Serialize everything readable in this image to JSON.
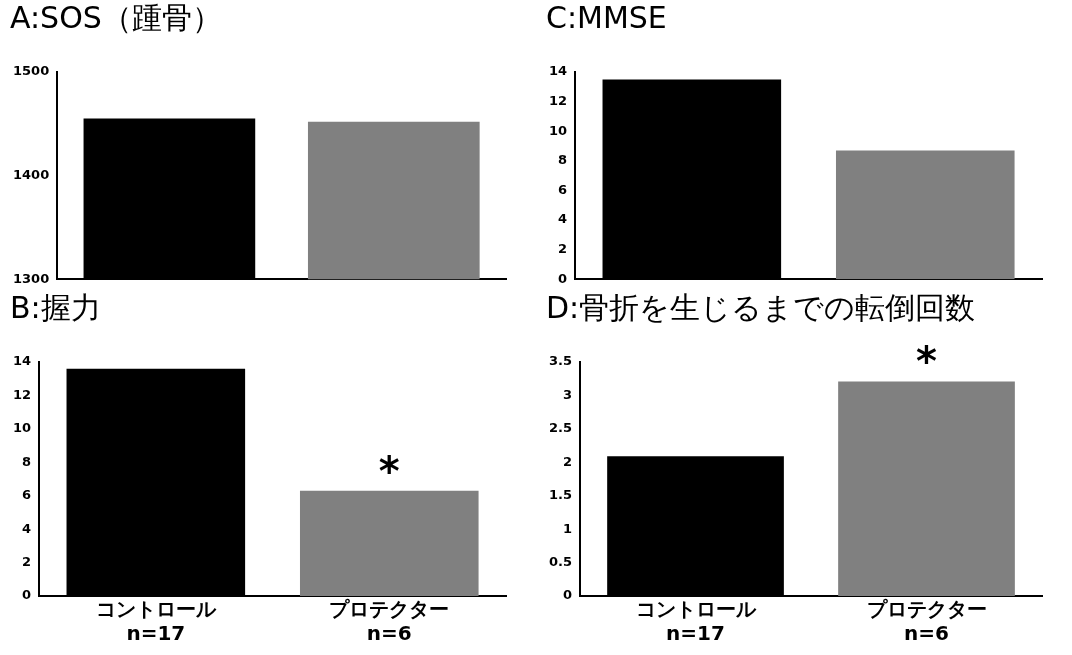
{
  "chart_data": [
    {
      "type": "bar",
      "title": "A:SOS（踵骨）",
      "categories": [
        null,
        null
      ],
      "values": [
        1455,
        1452
      ],
      "colors": [
        "#000000",
        "#808080"
      ],
      "ylim": [
        1300,
        1500
      ],
      "yticks": [
        1300,
        1400,
        1500
      ],
      "grid": false,
      "tick_labels": "y"
    },
    {
      "type": "bar",
      "title": "C:MMSE",
      "categories": [
        null,
        null
      ],
      "values": [
        13.5,
        8.7
      ],
      "colors": [
        "#000000",
        "#808080"
      ],
      "ylim": [
        0,
        14
      ],
      "yticks": [
        0,
        2,
        4,
        6,
        8,
        10,
        12,
        14
      ],
      "grid": false,
      "tick_labels": "y"
    },
    {
      "type": "bar",
      "title": "B:握力",
      "categories": [
        "コントロール\nn=17",
        "プロテクター\nn=6"
      ],
      "values": [
        13.6,
        6.3
      ],
      "colors": [
        "#000000",
        "#808080"
      ],
      "ylim": [
        0,
        14
      ],
      "yticks": [
        0,
        2,
        4,
        6,
        8,
        10,
        12,
        14
      ],
      "grid": false,
      "annotations": [
        {
          "text": "*",
          "x": "プロテクター\nn=6",
          "y": 6.3
        }
      ]
    },
    {
      "type": "bar",
      "title": "D:骨折を生じるまでの転倒回数",
      "categories": [
        "コントロール\nn=17",
        "プロテクター\nn=6"
      ],
      "values": [
        2.09,
        3.21
      ],
      "colors": [
        "#000000",
        "#808080"
      ],
      "ylim": [
        0,
        3.5
      ],
      "yticks": [
        0,
        0.5,
        1,
        1.5,
        2,
        2.5,
        3,
        3.5
      ],
      "grid": false,
      "annotations": [
        {
          "text": "*",
          "x": "プロテクター\nn=6",
          "y": 3.21
        }
      ]
    }
  ]
}
